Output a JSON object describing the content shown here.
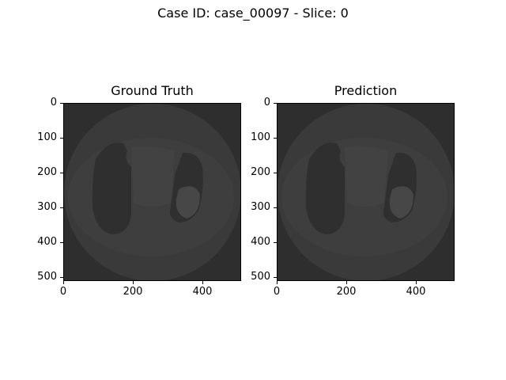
{
  "figure": {
    "title": "Case ID: case_00097 - Slice: 0"
  },
  "panels": [
    {
      "title": "Ground Truth"
    },
    {
      "title": "Prediction"
    }
  ],
  "axes": {
    "y_ticks": [
      "0",
      "100",
      "200",
      "300",
      "400",
      "500"
    ],
    "x_ticks": [
      "0",
      "200",
      "400"
    ]
  },
  "colors": {
    "background": "#2e2e2e",
    "body": "#3c3c3c",
    "lung": "#2f2f2f"
  }
}
